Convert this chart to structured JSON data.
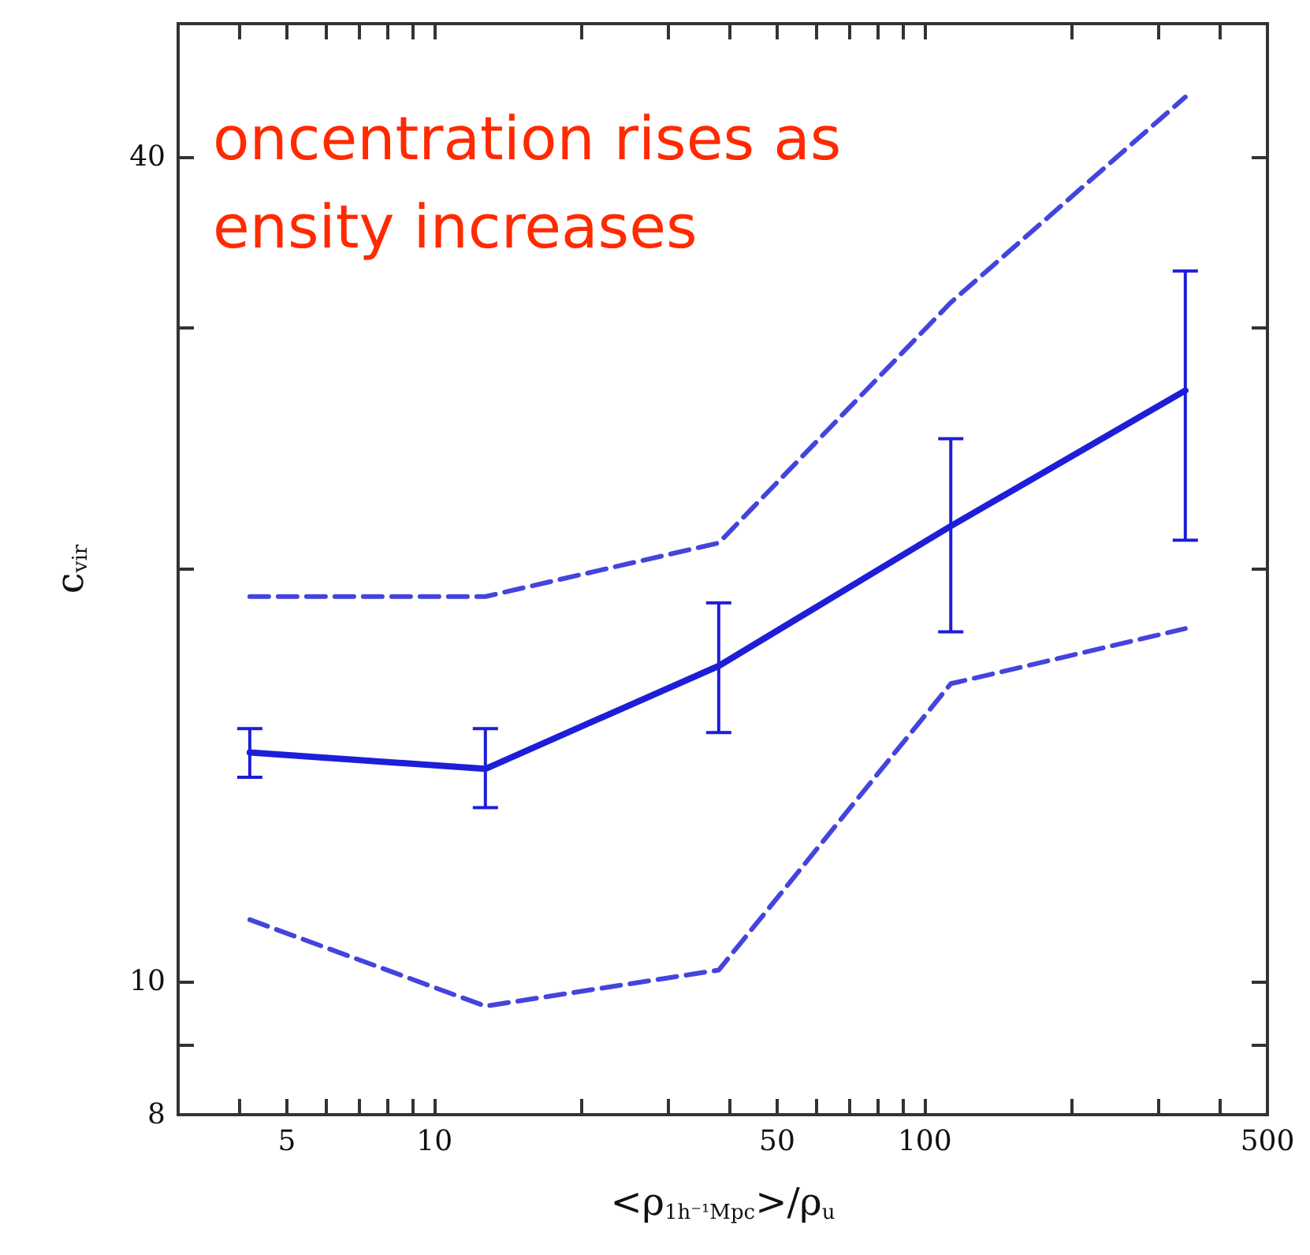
{
  "chart_data": {
    "type": "line",
    "xlabel": "<ρ$_{1h⁻¹Mpc}$>/ρ$_{u}$",
    "ylabel": "c$_{vir}$",
    "annotations": [
      "oncentration rises as\nensity increases"
    ],
    "log": "xy",
    "xlim": [
      3,
      500
    ],
    "ylim": [
      8,
      50
    ],
    "xticks": [
      {
        "value": 3,
        "label": null
      },
      {
        "value": 4,
        "label": null
      },
      5,
      {
        "value": 6,
        "label": null
      },
      {
        "value": 7,
        "label": null
      },
      {
        "value": 8,
        "label": null
      },
      {
        "value": 9,
        "label": null
      },
      10,
      {
        "value": 20,
        "label": null
      },
      {
        "value": 30,
        "label": null
      },
      {
        "value": 40,
        "label": null
      },
      50,
      {
        "value": 60,
        "label": null
      },
      {
        "value": 70,
        "label": null
      },
      {
        "value": 80,
        "label": null
      },
      {
        "value": 90,
        "label": null
      },
      100,
      {
        "value": 200,
        "label": null
      },
      {
        "value": 300,
        "label": null
      },
      {
        "value": 400,
        "label": null
      },
      500
    ],
    "yticks": [
      8,
      {
        "value": 9,
        "label": null
      },
      10,
      {
        "value": 20,
        "label": null
      },
      {
        "value": 30,
        "label": null
      },
      40
    ],
    "grid": false,
    "marker": "none",
    "series": [
      {
        "color": "#1e1ed8",
        "x": [
          4.2,
          12.7,
          38,
          113,
          340
        ],
        "values": [
          14.7,
          14.3,
          17.0,
          21.5,
          27.0
        ],
        "errors": [
          [
            14.1,
            15.3
          ],
          [
            13.4,
            15.3
          ],
          [
            15.2,
            18.9
          ],
          [
            18.0,
            24.9
          ],
          [
            21.0,
            33.0
          ]
        ],
        "line_style": "solid"
      },
      {
        "color": "#4444dd",
        "x": [
          4.2,
          12.7,
          38,
          113,
          340
        ],
        "values": [
          19.1,
          19.1,
          20.9,
          31.3,
          44.2
        ],
        "line_style": "dashed"
      },
      {
        "color": "#4444dd",
        "x": [
          4.2,
          12.7,
          38,
          113,
          340
        ],
        "values": [
          11.1,
          9.6,
          10.2,
          16.5,
          18.1
        ],
        "line_style": "dashed"
      }
    ]
  }
}
